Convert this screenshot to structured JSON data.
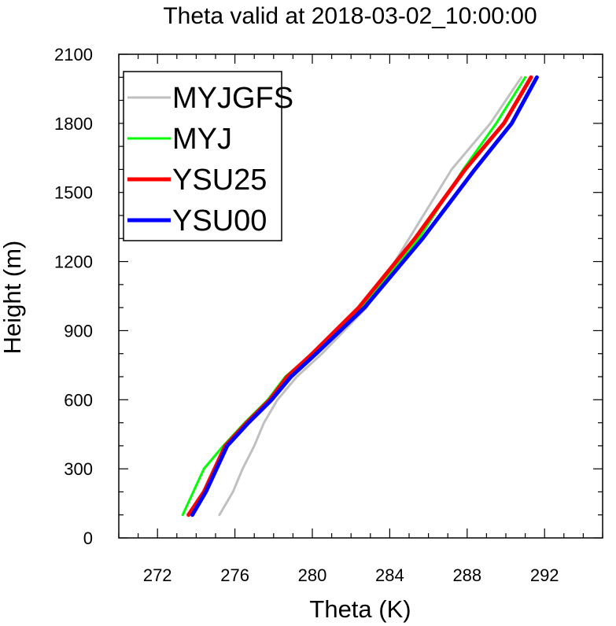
{
  "chart_data": {
    "type": "line",
    "title": "Theta valid at 2018-03-02_10:00:00",
    "xlabel": "Theta (K)",
    "ylabel": "Height (m)",
    "xlim": [
      270,
      295
    ],
    "ylim": [
      0,
      2100
    ],
    "xticks": [
      272,
      276,
      280,
      284,
      288,
      292
    ],
    "yticks": [
      0,
      300,
      600,
      900,
      1200,
      1500,
      1800,
      2100
    ],
    "legend_position": "top-left",
    "series": [
      {
        "name": "MYJGFS",
        "color": "#c0c0c0",
        "width": 3,
        "x": [
          275.2,
          275.9,
          276.4,
          277.0,
          277.5,
          278.2,
          279.2,
          280.5,
          282.8,
          285.0,
          287.2,
          289.2,
          290.8
        ],
        "y": [
          100,
          200,
          300,
          400,
          500,
          600,
          700,
          800,
          1000,
          1300,
          1600,
          1800,
          2000
        ]
      },
      {
        "name": "MYJ",
        "color": "#00ff00",
        "width": 3,
        "x": [
          273.3,
          274.4,
          275.4,
          276.5,
          277.7,
          278.6,
          280.0,
          282.6,
          285.5,
          287.8,
          289.5,
          291.0
        ],
        "y": [
          100,
          300,
          400,
          500,
          600,
          700,
          800,
          1000,
          1300,
          1600,
          1800,
          2000
        ]
      },
      {
        "name": "YSU25",
        "color": "#ff0000",
        "width": 5,
        "x": [
          273.6,
          274.4,
          275.5,
          276.6,
          277.8,
          278.7,
          280.0,
          282.4,
          285.3,
          287.9,
          289.9,
          291.3
        ],
        "y": [
          100,
          200,
          400,
          500,
          600,
          700,
          800,
          1000,
          1300,
          1600,
          1800,
          2000
        ]
      },
      {
        "name": "YSU00",
        "color": "#0000ff",
        "width": 5,
        "x": [
          273.8,
          274.5,
          275.6,
          276.7,
          277.9,
          278.9,
          280.2,
          282.7,
          285.7,
          288.4,
          290.3,
          291.6
        ],
        "y": [
          100,
          200,
          400,
          500,
          600,
          700,
          800,
          1000,
          1300,
          1600,
          1800,
          2000
        ]
      }
    ]
  }
}
